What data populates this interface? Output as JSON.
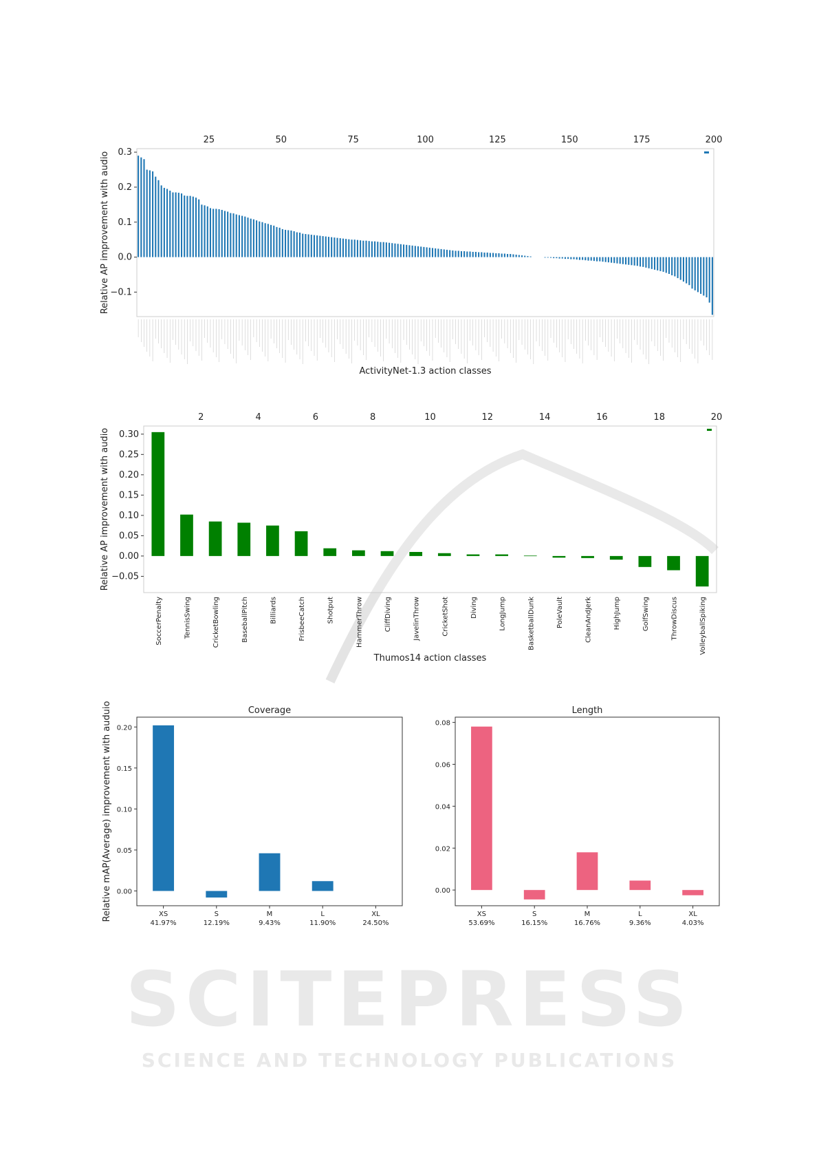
{
  "watermark": {
    "main": "SCITEPRESS",
    "sub": "SCIENCE AND TECHNOLOGY PUBLICATIONS"
  },
  "chart_data": [
    {
      "type": "bar",
      "id": "activitynet",
      "xlabel": "ActivityNet-1.3 action classes",
      "ylabel": "Relative AP improvement with audio",
      "color": "#1f77b4",
      "ylim": [
        -0.17,
        0.31
      ],
      "yticks": [
        -0.1,
        0.0,
        0.1,
        0.2,
        0.3
      ],
      "ytick_labels": [
        "−0.1",
        "0.0",
        "0.1",
        "0.2",
        "0.3"
      ],
      "top_ticks": [
        25,
        50,
        75,
        100,
        125,
        150,
        175,
        200
      ],
      "values": [
        0.29,
        0.285,
        0.28,
        0.25,
        0.248,
        0.245,
        0.23,
        0.22,
        0.205,
        0.198,
        0.195,
        0.19,
        0.185,
        0.185,
        0.184,
        0.182,
        0.176,
        0.175,
        0.175,
        0.173,
        0.17,
        0.165,
        0.15,
        0.148,
        0.145,
        0.14,
        0.138,
        0.138,
        0.137,
        0.135,
        0.132,
        0.13,
        0.126,
        0.125,
        0.122,
        0.12,
        0.118,
        0.116,
        0.113,
        0.11,
        0.108,
        0.105,
        0.102,
        0.1,
        0.097,
        0.095,
        0.092,
        0.09,
        0.086,
        0.084,
        0.08,
        0.078,
        0.077,
        0.076,
        0.074,
        0.071,
        0.07,
        0.067,
        0.066,
        0.065,
        0.064,
        0.063,
        0.062,
        0.061,
        0.06,
        0.059,
        0.058,
        0.057,
        0.056,
        0.055,
        0.054,
        0.053,
        0.052,
        0.051,
        0.05,
        0.05,
        0.049,
        0.048,
        0.047,
        0.047,
        0.046,
        0.045,
        0.045,
        0.044,
        0.043,
        0.043,
        0.042,
        0.041,
        0.04,
        0.039,
        0.038,
        0.037,
        0.036,
        0.035,
        0.034,
        0.033,
        0.032,
        0.031,
        0.03,
        0.029,
        0.028,
        0.027,
        0.026,
        0.025,
        0.024,
        0.023,
        0.022,
        0.021,
        0.02,
        0.019,
        0.018,
        0.018,
        0.017,
        0.017,
        0.016,
        0.016,
        0.015,
        0.015,
        0.014,
        0.014,
        0.013,
        0.013,
        0.012,
        0.012,
        0.011,
        0.011,
        0.01,
        0.01,
        0.009,
        0.009,
        0.008,
        0.007,
        0.006,
        0.005,
        0.004,
        0.003,
        0.002,
        0,
        0,
        0,
        0,
        -0.001,
        -0.001,
        -0.002,
        -0.003,
        -0.003,
        -0.004,
        -0.004,
        -0.005,
        -0.005,
        -0.006,
        -0.006,
        -0.007,
        -0.008,
        -0.008,
        -0.009,
        -0.01,
        -0.01,
        -0.011,
        -0.012,
        -0.012,
        -0.013,
        -0.014,
        -0.015,
        -0.016,
        -0.017,
        -0.018,
        -0.019,
        -0.02,
        -0.021,
        -0.022,
        -0.023,
        -0.024,
        -0.025,
        -0.027,
        -0.028,
        -0.03,
        -0.032,
        -0.034,
        -0.036,
        -0.038,
        -0.04,
        -0.042,
        -0.045,
        -0.048,
        -0.052,
        -0.055,
        -0.06,
        -0.065,
        -0.07,
        -0.075,
        -0.08,
        -0.09,
        -0.095,
        -0.1,
        -0.105,
        -0.11,
        -0.115,
        -0.13,
        -0.165
      ]
    },
    {
      "type": "bar",
      "id": "thumos",
      "xlabel": "Thumos14 action classes",
      "ylabel": "Relative AP improvement with audio",
      "color": "#008000",
      "ylim": [
        -0.09,
        0.32
      ],
      "yticks": [
        -0.05,
        0.0,
        0.05,
        0.1,
        0.15,
        0.2,
        0.25,
        0.3
      ],
      "ytick_labels": [
        "−0.05",
        "0.00",
        "0.05",
        "0.10",
        "0.15",
        "0.20",
        "0.25",
        "0.30"
      ],
      "top_ticks": [
        2,
        4,
        6,
        8,
        10,
        12,
        14,
        16,
        18,
        20
      ],
      "categories": [
        "SoccerPenalty",
        "TennisSwing",
        "CricketBowling",
        "BaseballPitch",
        "Billiards",
        "FrisbeeCatch",
        "Shotput",
        "HammerThrow",
        "CliffDiving",
        "JavelinThrow",
        "CricketShot",
        "Diving",
        "LongJump",
        "BasketballDunk",
        "PoleVault",
        "CleanAndJerk",
        "HighJump",
        "GolfSwing",
        "ThrowDiscus",
        "VolleyballSpiking"
      ],
      "values": [
        0.305,
        0.102,
        0.085,
        0.082,
        0.075,
        0.061,
        0.019,
        0.014,
        0.012,
        0.01,
        0.007,
        0.004,
        0.004,
        0.001,
        -0.004,
        -0.005,
        -0.009,
        -0.027,
        -0.035,
        -0.075
      ]
    },
    {
      "type": "bar",
      "id": "coverage",
      "title": "Coverage",
      "ylabel": "Relative mAP(Average) improvement with auduio",
      "color": "#1f77b4",
      "ylim": [
        -0.018,
        0.212
      ],
      "yticks": [
        0.0,
        0.05,
        0.1,
        0.15,
        0.2
      ],
      "ytick_labels": [
        "0.00",
        "0.05",
        "0.10",
        "0.15",
        "0.20"
      ],
      "categories": [
        "XS",
        "S",
        "M",
        "L",
        "XL"
      ],
      "category_shares": [
        "41.97%",
        "12.19%",
        "9.43%",
        "11.90%",
        "24.50%"
      ],
      "values": [
        0.202,
        -0.008,
        0.046,
        0.012,
        0.0
      ]
    },
    {
      "type": "bar",
      "id": "length",
      "title": "Length",
      "ylabel": "",
      "color": "#ed6380",
      "ylim": [
        -0.0075,
        0.0825
      ],
      "yticks": [
        0.0,
        0.02,
        0.04,
        0.06,
        0.08
      ],
      "ytick_labels": [
        "0.00",
        "0.02",
        "0.04",
        "0.06",
        "0.08"
      ],
      "categories": [
        "XS",
        "S",
        "M",
        "L",
        "XL"
      ],
      "category_shares": [
        "53.69%",
        "16.15%",
        "16.76%",
        "9.36%",
        "4.03%"
      ],
      "values": [
        0.078,
        -0.0045,
        0.018,
        0.0045,
        -0.0025
      ]
    }
  ]
}
